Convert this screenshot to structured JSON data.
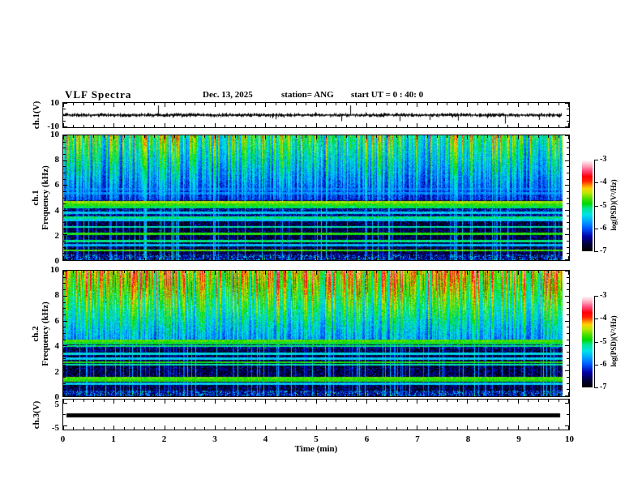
{
  "title": {
    "main": "VLF Spectra",
    "date": "Dec. 13, 2025",
    "station": "station= ANG",
    "start_ut": "start UT =  0 : 40: 0"
  },
  "x_axis": {
    "label": "Time  (min)",
    "tick_labels": [
      "0",
      "1",
      "2",
      "3",
      "4",
      "5",
      "6",
      "7",
      "8",
      "9",
      "10"
    ],
    "range_min": [
      0,
      10
    ],
    "minor_step_min": 0.2
  },
  "colormap": {
    "value_range": [
      -7,
      -3
    ],
    "stops": [
      [
        0.0,
        "#000000"
      ],
      [
        0.08,
        "#000040"
      ],
      [
        0.16,
        "#0000A8"
      ],
      [
        0.25,
        "#0058FF"
      ],
      [
        0.33,
        "#00AAFF"
      ],
      [
        0.4,
        "#00E4E4"
      ],
      [
        0.47,
        "#00E690"
      ],
      [
        0.52,
        "#00D800"
      ],
      [
        0.58,
        "#55E000"
      ],
      [
        0.64,
        "#C0E800"
      ],
      [
        0.69,
        "#FFD000"
      ],
      [
        0.73,
        "#FF7800"
      ],
      [
        0.77,
        "#FF2000"
      ],
      [
        0.82,
        "#FF0008"
      ],
      [
        0.88,
        "#FF4878"
      ],
      [
        0.93,
        "#FF9CB4"
      ],
      [
        0.97,
        "#FFD6E0"
      ],
      [
        1.0,
        "#FFFFFF"
      ]
    ]
  },
  "colorbars": [
    {
      "label": "log(PSD)(V²/Hz)",
      "tick_labels": [
        "-3",
        "-4",
        "-5",
        "-6",
        "-7"
      ]
    },
    {
      "label": "log(PSD)(V²/Hz)",
      "tick_labels": [
        "-3",
        "-4",
        "-5",
        "-6",
        "-7"
      ]
    }
  ],
  "chart_data": [
    {
      "id": "ch1_waveform",
      "type": "line",
      "ylabel": "ch.1(V)",
      "ytick_labels": [
        "10",
        "-10"
      ],
      "ylim": [
        -10,
        10
      ],
      "xlim_min": [
        0,
        10
      ],
      "data_end_min": 9.85,
      "noise_band_V": 1.4,
      "spikes": [
        {
          "t_min": 1.88,
          "v": 8
        },
        {
          "t_min": 4.2,
          "v": -3.5
        },
        {
          "t_min": 5.5,
          "v": -5
        },
        {
          "t_min": 5.68,
          "v": 8
        },
        {
          "t_min": 6.65,
          "v": -5
        },
        {
          "t_min": 7.25,
          "v": -4
        },
        {
          "t_min": 7.8,
          "v": -4.5
        },
        {
          "t_min": 8.74,
          "v": -7
        },
        {
          "t_min": 9.4,
          "v": -4
        }
      ]
    },
    {
      "id": "ch1_spectrogram",
      "type": "heatmap",
      "ylabel_line1": "ch.1",
      "ylabel_line2": "Frequency (kHz)",
      "ytick_labels": [
        "10",
        "8",
        "6",
        "4",
        "2",
        "0"
      ],
      "ylim_kHz": [
        0,
        10
      ],
      "xlim_min": [
        0,
        10
      ],
      "data_end_min": 9.85,
      "value_label": "log(PSD)(V²/Hz)",
      "value_range": [
        -7,
        -3
      ],
      "upper_band": {
        "from_kHz": 4.8,
        "base_level": -5.9,
        "streak_gain": 2.0,
        "top_gain": 0.6,
        "description": "blue background with dense vertical impulsive streaks (cyan/green, occasional yellow)"
      },
      "tone_lines_kHz": [
        {
          "f": 4.65,
          "level": -4.6
        },
        {
          "f": 4.45,
          "level": -4.9
        },
        {
          "f": 4.25,
          "level": -5.1
        },
        {
          "f": 3.8,
          "level": -5.6
        },
        {
          "f": 3.4,
          "level": -5.2
        },
        {
          "f": 3.2,
          "level": -5.6
        },
        {
          "f": 2.65,
          "level": -5.3
        },
        {
          "f": 2.1,
          "level": -4.9
        },
        {
          "f": 1.5,
          "level": -5.2
        },
        {
          "f": 1.2,
          "level": -5.7
        },
        {
          "f": 0.75,
          "level": -4.8
        },
        {
          "f": 5.35,
          "level": -5.9
        },
        {
          "f": 5.7,
          "level": -6.0
        }
      ],
      "texture_bands_kHz": [
        [
          3.5,
          4.2
        ]
      ],
      "bottom_band_kHz": [
        0,
        0.45
      ]
    },
    {
      "id": "ch2_spectrogram",
      "type": "heatmap",
      "ylabel_line1": "ch.2",
      "ylabel_line2": "Frequency (kHz)",
      "ytick_labels": [
        "10",
        "8",
        "6",
        "4",
        "2",
        "0"
      ],
      "ylim_kHz": [
        0,
        10
      ],
      "xlim_min": [
        0,
        10
      ],
      "data_end_min": 9.85,
      "value_label": "log(PSD)(V²/Hz)",
      "value_range": [
        -7,
        -3
      ],
      "upper_band": {
        "from_kHz": 4.5,
        "base_level": -5.3,
        "streak_gain": 2.1,
        "top_gain": 0.55,
        "description": "green-yellow background with orange/red vertical streaks, hotter toward 10 kHz"
      },
      "tone_lines_kHz": [
        {
          "f": 4.4,
          "level": -4.8
        },
        {
          "f": 4.2,
          "level": -5.0
        },
        {
          "f": 4.0,
          "level": -5.2
        },
        {
          "f": 3.4,
          "level": -5.5
        },
        {
          "f": 3.0,
          "level": -5.6
        },
        {
          "f": 2.7,
          "level": -4.9
        },
        {
          "f": 2.5,
          "level": -5.3
        },
        {
          "f": 1.45,
          "level": -4.8
        },
        {
          "f": 1.25,
          "level": -4.9
        },
        {
          "f": 0.95,
          "level": -5.6
        }
      ],
      "texture_bands_kHz": [
        [
          3.8,
          4.5
        ]
      ],
      "bottom_band_kHz": [
        0,
        0.45
      ]
    },
    {
      "id": "ch3_waveform",
      "type": "line",
      "ylabel": "ch.3(V)",
      "ytick_labels": [
        "5",
        "-5"
      ],
      "ylim": [
        -6.5,
        6.5
      ],
      "xlim_min": [
        0,
        10
      ],
      "constant_V": 0,
      "data_start_min": 0.06,
      "data_end_min": 9.82
    }
  ]
}
